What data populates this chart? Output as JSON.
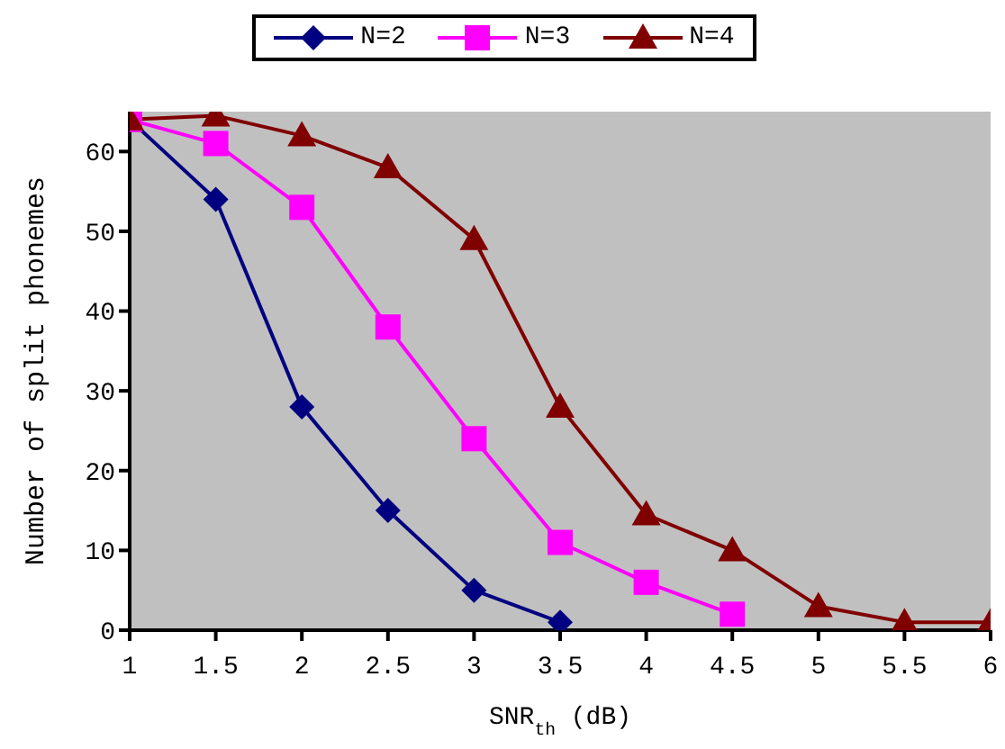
{
  "chart_data": {
    "type": "line",
    "xlabel": "SNR$_{th}$ (dB)",
    "ylabel": "Number of split phonemes",
    "xlim": [
      1,
      6
    ],
    "xticks": [
      1,
      1.5,
      2,
      2.5,
      3,
      3.5,
      4,
      4.5,
      5,
      5.5,
      6
    ],
    "ylim": [
      0,
      65
    ],
    "yticks": [
      0,
      10,
      20,
      30,
      40,
      50,
      60
    ],
    "grid": false,
    "legend": "top",
    "series": [
      {
        "name": "N=2",
        "color": "#000080",
        "marker": "diamond",
        "x": [
          1,
          1.5,
          2,
          2.5,
          3,
          3.5
        ],
        "values": [
          64,
          54,
          28,
          15,
          5,
          1
        ]
      },
      {
        "name": "N=3",
        "color": "#ff00ff",
        "marker": "square",
        "x": [
          1,
          1.5,
          2,
          2.5,
          3,
          3.5,
          4,
          4.5
        ],
        "values": [
          64,
          61,
          53,
          38,
          24,
          11,
          6,
          2
        ]
      },
      {
        "name": "N=4",
        "color": "#800000",
        "marker": "triangle",
        "x": [
          1,
          1.5,
          2,
          2.5,
          3,
          3.5,
          4,
          4.5,
          5,
          5.5,
          6
        ],
        "values": [
          64,
          64.5,
          62,
          58,
          49,
          28,
          14.5,
          10,
          3,
          1,
          1
        ]
      }
    ]
  }
}
